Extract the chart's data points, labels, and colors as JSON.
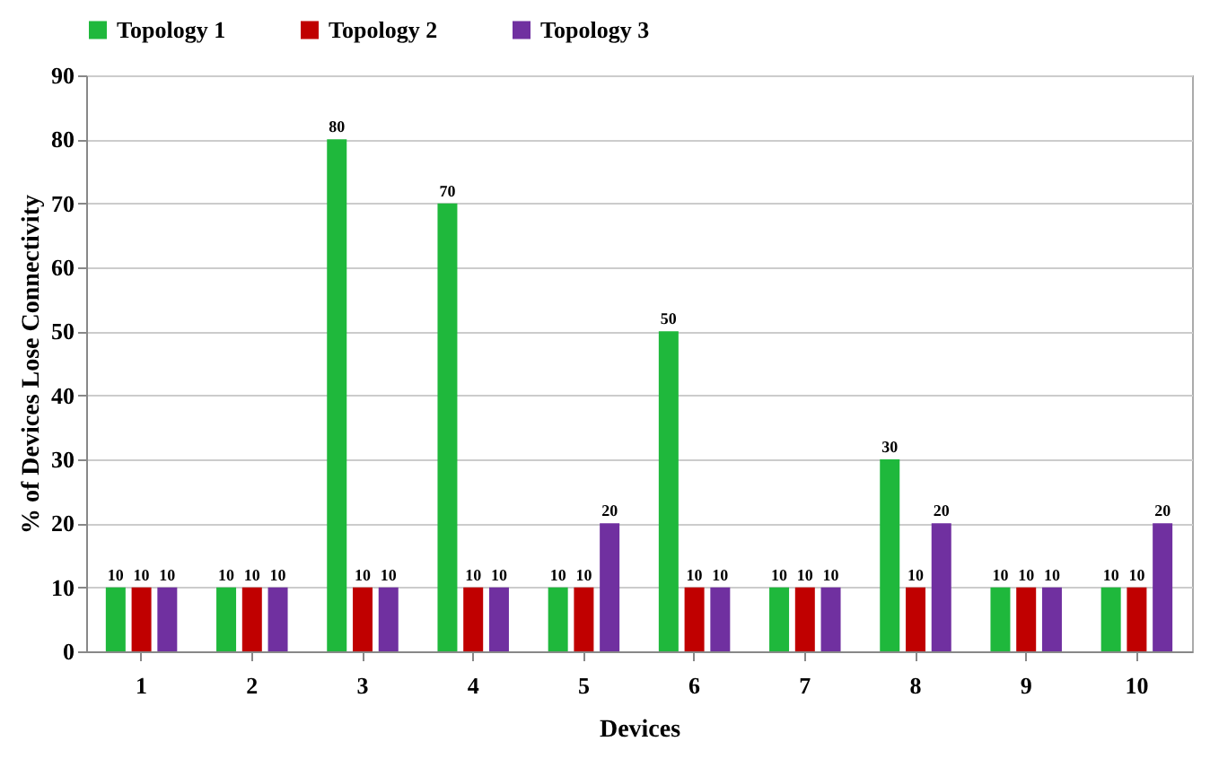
{
  "chart_data": {
    "type": "bar",
    "xlabel": "Devices",
    "ylabel": "% of Devices Lose Connectivity",
    "categories": [
      "1",
      "2",
      "3",
      "4",
      "5",
      "6",
      "7",
      "8",
      "9",
      "10"
    ],
    "series": [
      {
        "name": "Topology 1",
        "color": "#1fb83c",
        "values": [
          10,
          10,
          80,
          70,
          10,
          50,
          10,
          30,
          10,
          10
        ]
      },
      {
        "name": "Topology 2",
        "color": "#c00000",
        "values": [
          10,
          10,
          10,
          10,
          10,
          10,
          10,
          10,
          10,
          10
        ]
      },
      {
        "name": "Topology 3",
        "color": "#7030a0",
        "values": [
          10,
          10,
          10,
          10,
          20,
          10,
          10,
          20,
          10,
          20
        ]
      }
    ],
    "ylim": [
      0,
      90
    ],
    "yticks": [
      0,
      10,
      20,
      30,
      40,
      50,
      60,
      70,
      80,
      90
    ],
    "grid": "y",
    "legend": "top",
    "data_labels": true
  }
}
